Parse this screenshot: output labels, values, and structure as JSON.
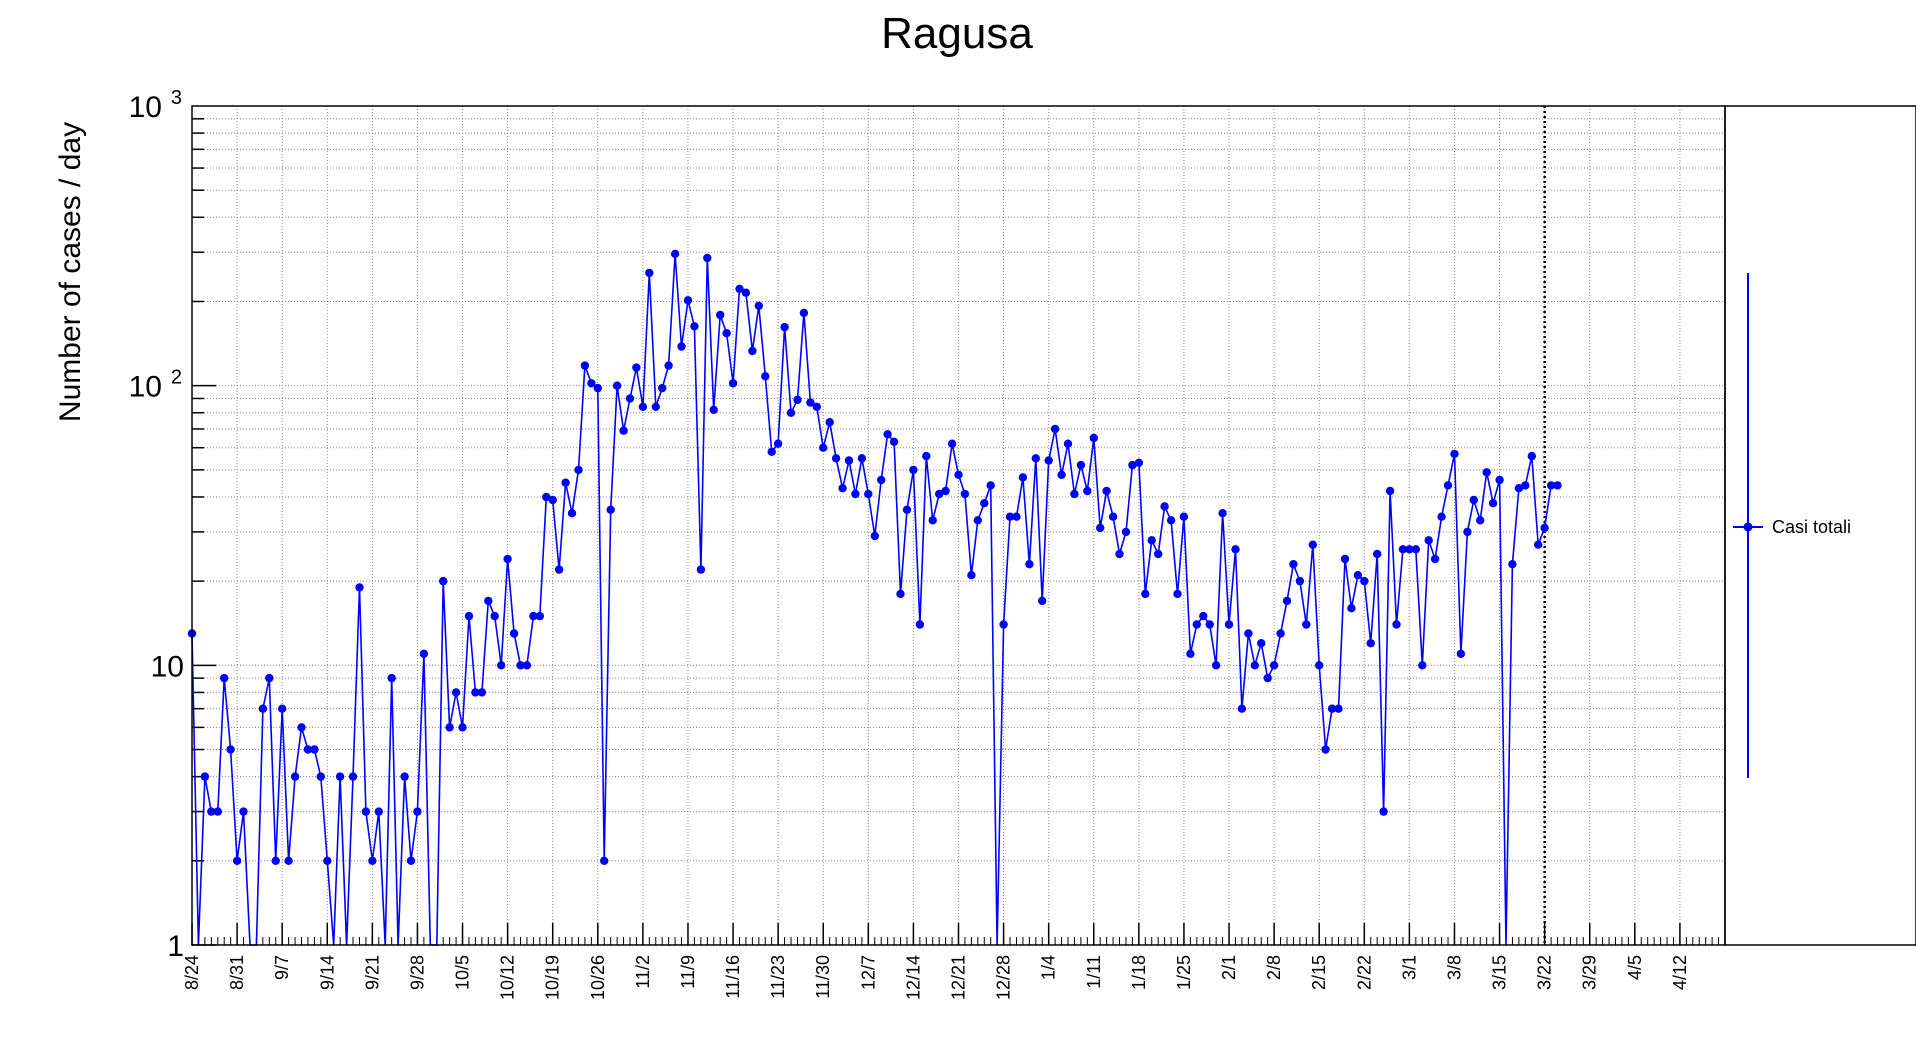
{
  "chart_data": {
    "type": "line",
    "title": "Ragusa",
    "ylabel": "Number of cases / day",
    "xlabel": "",
    "yscale": "log",
    "ylim": [
      1,
      1000
    ],
    "grid": true,
    "line_color": "#0000ff",
    "marker_color": "#0000ff",
    "y_ticks": [
      {
        "value": 1,
        "label": "1"
      },
      {
        "value": 10,
        "label": "10"
      },
      {
        "value": 100,
        "label": "10",
        "exp": "2"
      },
      {
        "value": 1000,
        "label": "10",
        "exp": "3"
      }
    ],
    "x_range": [
      "2020-08-24",
      "2021-04-19"
    ],
    "x_ticks": [
      "8/24",
      "8/31",
      "9/7",
      "9/14",
      "9/21",
      "9/28",
      "10/5",
      "10/12",
      "10/19",
      "10/26",
      "11/2",
      "11/9",
      "11/16",
      "11/23",
      "11/30",
      "12/7",
      "12/14",
      "12/21",
      "12/28",
      "1/4",
      "1/11",
      "1/18",
      "1/25",
      "2/1",
      "2/8",
      "2/15",
      "2/22",
      "3/1",
      "3/8",
      "3/15",
      "3/22",
      "3/29",
      "4/5",
      "4/12"
    ],
    "marker_line": {
      "date": "2021-03-22"
    },
    "series": [
      {
        "name": "Casi totali",
        "start_date": "2020-08-24",
        "values": [
          13,
          0,
          4,
          3,
          3,
          9,
          5,
          2,
          3,
          0,
          0,
          7,
          9,
          2,
          7,
          2,
          4,
          6,
          5,
          5,
          4,
          2,
          0,
          4,
          0,
          4,
          19,
          3,
          2,
          3,
          0,
          9,
          0,
          4,
          2,
          3,
          11,
          0,
          0,
          20,
          6,
          8,
          6,
          15,
          8,
          8,
          17,
          15,
          10,
          24,
          13,
          10,
          10,
          15,
          15,
          40,
          39,
          22,
          45,
          35,
          50,
          118,
          102,
          98,
          2,
          36,
          100,
          69,
          90,
          116,
          84,
          253,
          84,
          98,
          118,
          296,
          138,
          202,
          163,
          22,
          286,
          82,
          179,
          154,
          102,
          222,
          215,
          133,
          193,
          108,
          58,
          62,
          162,
          80,
          89,
          182,
          87,
          84,
          60,
          74,
          55,
          43,
          54,
          41,
          55,
          41,
          29,
          46,
          67,
          63,
          18,
          36,
          50,
          14,
          56,
          33,
          41,
          42,
          62,
          48,
          41,
          21,
          33,
          38,
          44,
          0,
          14,
          34,
          34,
          47,
          23,
          55,
          17,
          54,
          70,
          48,
          62,
          41,
          52,
          42,
          65,
          31,
          42,
          34,
          25,
          30,
          52,
          53,
          18,
          28,
          25,
          37,
          33,
          18,
          34,
          11,
          14,
          15,
          14,
          10,
          35,
          14,
          26,
          7,
          13,
          10,
          12,
          9,
          10,
          13,
          17,
          23,
          20,
          14,
          27,
          10,
          5,
          7,
          7,
          24,
          16,
          21,
          20,
          12,
          25,
          3,
          42,
          14,
          26,
          26,
          26,
          10,
          28,
          24,
          34,
          44,
          57,
          11,
          30,
          39,
          33,
          49,
          38,
          46,
          1,
          23,
          43,
          44,
          56,
          27,
          31,
          44,
          44
        ]
      }
    ],
    "legend": {
      "position": "right",
      "entries": [
        "Casi totali"
      ]
    }
  }
}
